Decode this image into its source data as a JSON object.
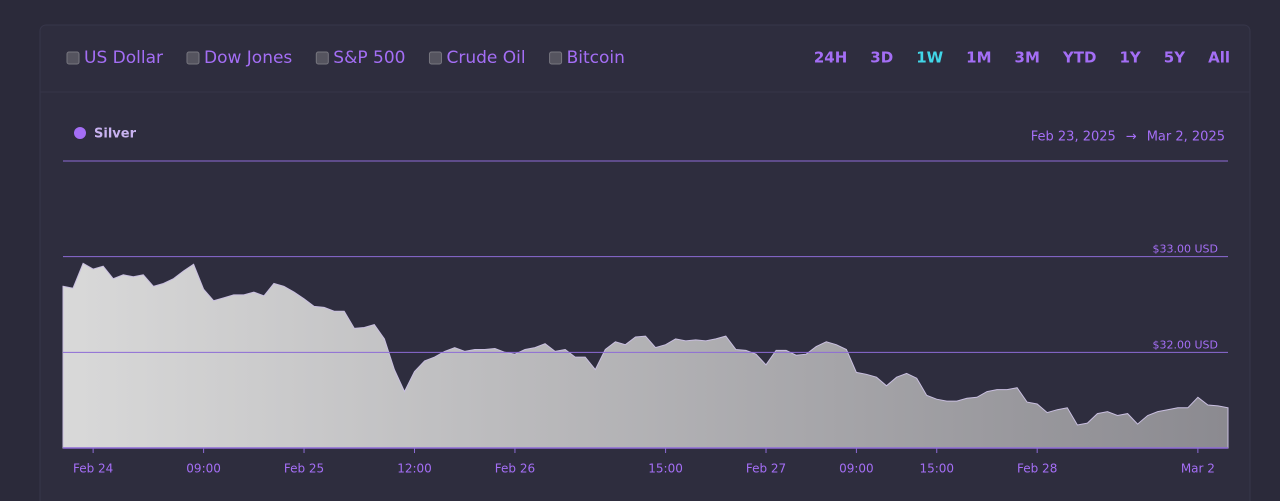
{
  "toolbar": {
    "compare": [
      "US Dollar",
      "Dow Jones",
      "S&P 500",
      "Crude Oil",
      "Bitcoin"
    ],
    "ranges": [
      "24H",
      "3D",
      "1W",
      "1M",
      "3M",
      "YTD",
      "1Y",
      "5Y",
      "All"
    ],
    "active_range": 2
  },
  "date_range": {
    "from": "Feb 23, 2025",
    "arrow": "→",
    "to": "Mar 2, 2025"
  },
  "chart_data": {
    "type": "area",
    "categories": [
      null,
      null,
      null,
      "Feb 24",
      null,
      null,
      null,
      null,
      null,
      null,
      null,
      null,
      null,
      null,
      "09:00",
      null,
      null,
      null,
      null,
      null,
      null,
      null,
      null,
      null,
      "Feb 25",
      null,
      null,
      null,
      null,
      null,
      null,
      null,
      null,
      null,
      null,
      "12:00",
      null,
      null,
      null,
      null,
      null,
      null,
      null,
      null,
      null,
      "Feb 26",
      null,
      null,
      null,
      null,
      null,
      null,
      null,
      null,
      null,
      null,
      null,
      null,
      null,
      null,
      "15:00",
      null,
      null,
      null,
      null,
      null,
      null,
      null,
      null,
      null,
      "Feb 27",
      null,
      null,
      null,
      null,
      null,
      null,
      null,
      null,
      "09:00",
      null,
      null,
      null,
      null,
      null,
      null,
      null,
      "15:00",
      null,
      null,
      null,
      null,
      null,
      null,
      null,
      null,
      null,
      "Feb 28",
      null,
      null,
      null,
      null,
      null,
      null,
      null,
      null,
      null,
      null,
      null,
      null,
      null,
      null,
      null,
      "Mar 2",
      null,
      null,
      null
    ],
    "series": [
      {
        "name": "Silver",
        "color": "#a46ef5",
        "values": [
          32.69,
          32.67,
          32.93,
          32.87,
          32.9,
          32.77,
          32.81,
          32.79,
          32.81,
          32.69,
          32.72,
          32.77,
          32.85,
          32.92,
          32.66,
          32.54,
          32.57,
          32.6,
          32.6,
          32.63,
          32.59,
          32.72,
          32.69,
          32.63,
          32.56,
          32.48,
          32.47,
          32.43,
          32.43,
          32.25,
          32.26,
          32.29,
          32.14,
          31.82,
          31.59,
          31.8,
          31.91,
          31.95,
          32.01,
          32.05,
          32.01,
          32.03,
          32.03,
          32.04,
          32.0,
          31.98,
          32.03,
          32.05,
          32.09,
          32.01,
          32.03,
          31.95,
          31.95,
          31.82,
          32.03,
          32.11,
          32.08,
          32.16,
          32.17,
          32.05,
          32.08,
          32.14,
          32.12,
          32.13,
          32.12,
          32.14,
          32.17,
          32.03,
          32.02,
          31.98,
          31.87,
          32.02,
          32.02,
          31.97,
          31.98,
          32.06,
          32.11,
          32.08,
          32.03,
          31.79,
          31.77,
          31.74,
          31.65,
          31.74,
          31.78,
          31.73,
          31.55,
          31.51,
          31.49,
          31.49,
          31.52,
          31.53,
          31.59,
          31.61,
          31.61,
          31.63,
          31.48,
          31.46,
          31.37,
          31.4,
          31.42,
          31.24,
          31.26,
          31.36,
          31.38,
          31.34,
          31.36,
          31.25,
          31.34,
          31.38,
          31.4,
          31.42,
          31.42,
          31.53,
          31.45,
          31.44,
          31.42
        ]
      }
    ],
    "ylim": [
      31,
      34
    ],
    "yticks": [
      {
        "value": 32,
        "label": "$32.00 USD"
      },
      {
        "value": 33,
        "label": "$33.00 USD"
      }
    ],
    "grid": true
  }
}
